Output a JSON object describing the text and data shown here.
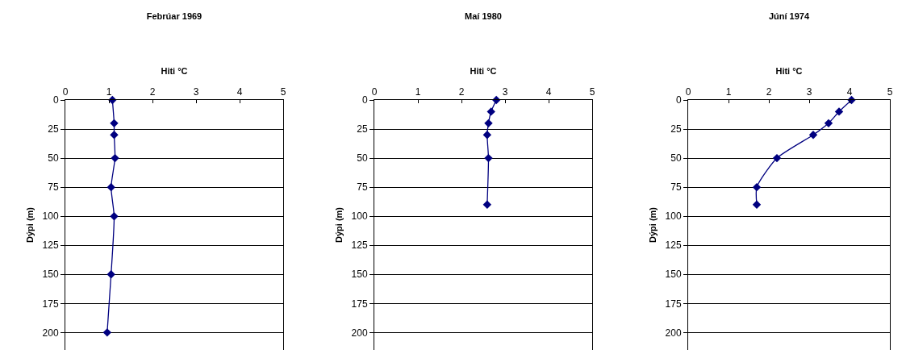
{
  "chart_data": [
    {
      "type": "line",
      "title": "Febrúar 1969",
      "xlabel": "Hiti °C",
      "ylabel": "Dýpi (m)",
      "xlim": [
        0,
        5
      ],
      "xticks": [
        0,
        1,
        2,
        3,
        4,
        5
      ],
      "ylim": [
        215,
        0
      ],
      "yticks": [
        0,
        25,
        50,
        75,
        100,
        125,
        150,
        175,
        200
      ],
      "grid": "y",
      "marker": "diamond",
      "line_style": "solid",
      "series": [
        {
          "color": "#000080",
          "x": [
            1.08,
            1.12,
            1.12,
            1.14,
            1.05,
            1.12,
            1.05,
            0.96
          ],
          "values": [
            0,
            20,
            30,
            50,
            75,
            100,
            150,
            200
          ]
        }
      ]
    },
    {
      "type": "line",
      "title": "Maí 1980",
      "xlabel": "Hiti °C",
      "ylabel": "Dýpi (m)",
      "xlim": [
        0,
        5
      ],
      "xticks": [
        0,
        1,
        2,
        3,
        4,
        5
      ],
      "ylim": [
        215,
        0
      ],
      "yticks": [
        0,
        25,
        50,
        75,
        100,
        125,
        150,
        175,
        200
      ],
      "grid": "y",
      "marker": "diamond",
      "line_style": "solid",
      "series": [
        {
          "color": "#000080",
          "x": [
            2.8,
            2.68,
            2.62,
            2.59,
            2.62,
            2.59
          ],
          "values": [
            0,
            10,
            20,
            30,
            50,
            90
          ]
        }
      ]
    },
    {
      "type": "line",
      "title": "Júní 1974",
      "xlabel": "Hiti °C",
      "ylabel": "Dýpi (m)",
      "xlim": [
        0,
        5
      ],
      "xticks": [
        0,
        1,
        2,
        3,
        4,
        5
      ],
      "ylim": [
        215,
        0
      ],
      "yticks": [
        0,
        25,
        50,
        75,
        100,
        125,
        150,
        175,
        200
      ],
      "grid": "y",
      "marker": "diamond",
      "line_style": "solid",
      "series": [
        {
          "color": "#000080",
          "x": [
            4.05,
            3.74,
            3.48,
            3.1,
            2.2,
            1.7,
            1.7
          ],
          "values": [
            0,
            10,
            20,
            30,
            50,
            75,
            90
          ]
        }
      ]
    }
  ]
}
